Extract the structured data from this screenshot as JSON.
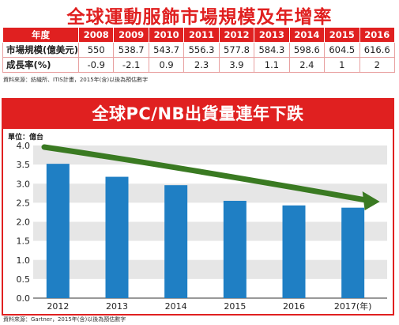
{
  "top": {
    "title": "全球運動服飾市場規模及年增率",
    "header_label": "年度",
    "years": [
      "2008",
      "2009",
      "2010",
      "2011",
      "2012",
      "2013",
      "2014",
      "2015",
      "2016"
    ],
    "rows": [
      {
        "label": "市場規模(億美元)",
        "values": [
          "550",
          "538.7",
          "543.7",
          "556.3",
          "577.8",
          "584.3",
          "598.6",
          "604.5",
          "616.6"
        ]
      },
      {
        "label": "成長率(%)",
        "values": [
          "-0.9",
          "-2.1",
          "0.9",
          "2.3",
          "3.9",
          "1.1",
          "2.4",
          "1",
          "2"
        ]
      }
    ],
    "source": "資料來源：紡織所、ITIS計畫，2015年(含)以後為預估數字",
    "header_color": "#e02020"
  },
  "bottom": {
    "title": "全球PC/NB出貨量連年下跌",
    "source": "資料來源：Gartner，2015年(含)以後為預估數字"
  },
  "chart_data": {
    "type": "bar",
    "title": "全球PC/NB出貨量連年下跌",
    "unit_label": "單位：億台",
    "categories": [
      "2012",
      "2013",
      "2014",
      "2015",
      "2016",
      "2017(年)"
    ],
    "values": [
      3.52,
      3.18,
      2.96,
      2.55,
      2.43,
      2.37
    ],
    "ylim": [
      0,
      4.0
    ],
    "yticks": [
      "0.0",
      "0.5",
      "1.0",
      "1.5",
      "2.0",
      "2.5",
      "3.0",
      "3.5",
      "4.0"
    ],
    "bar_color": "#1f7fc4",
    "trend_arrow_color": "#3a7a22",
    "grid": "horizontal bands",
    "band_color": "#e6e6e6"
  }
}
